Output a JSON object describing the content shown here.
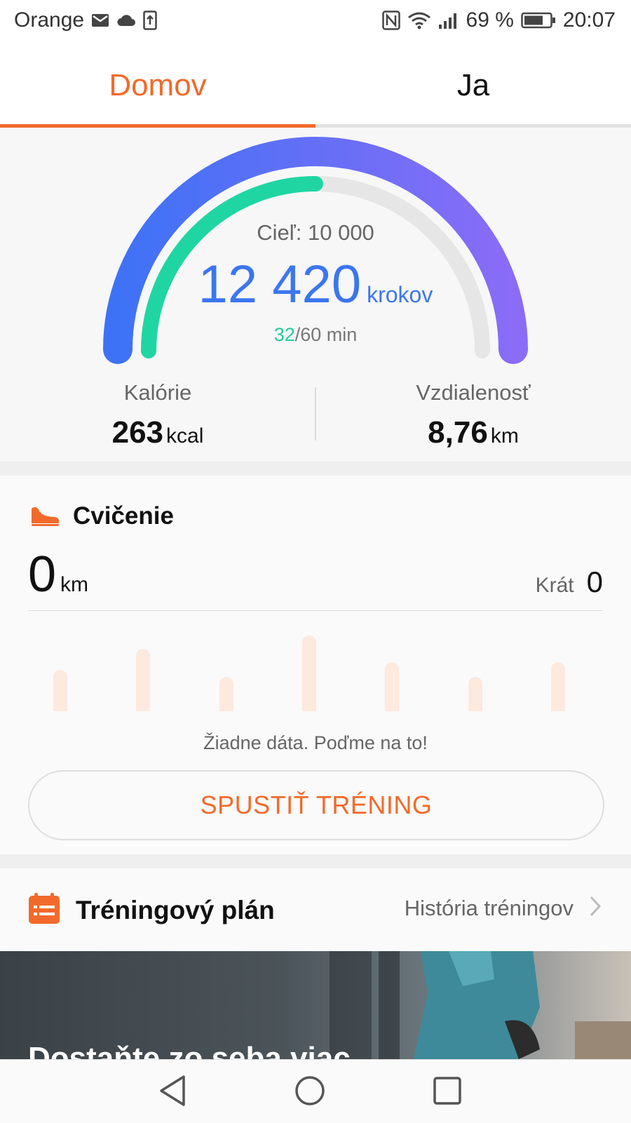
{
  "status_bar": {
    "carrier": "Orange",
    "battery_percent": "69 %",
    "time": "20:07",
    "icons": [
      "gmail-icon",
      "cloud-icon",
      "upload-icon",
      "nfc-icon",
      "wifi-icon",
      "signal-icon",
      "battery-icon"
    ]
  },
  "tabs": [
    {
      "label": "Domov",
      "active": true
    },
    {
      "label": "Ja",
      "active": false
    }
  ],
  "steps": {
    "goal_label": "Cieľ: 10 000",
    "value": "12 420",
    "unit": "krokov",
    "minutes_done": "32",
    "minutes_total": "/60 min",
    "progress_fraction": 0.5,
    "colors": {
      "outer_start": "#3e72f6",
      "outer_end": "#8a6cf7",
      "inner": "#1fd6a3",
      "track": "#e6e6e6"
    }
  },
  "calories": {
    "label": "Kalórie",
    "value": "263",
    "unit": "kcal"
  },
  "distance": {
    "label": "Vzdialenosť",
    "value": "8,76",
    "unit": "km"
  },
  "exercise": {
    "title": "Cvičenie",
    "icon": "shoe-icon",
    "distance_value": "0",
    "distance_unit": "km",
    "times_label": "Krát",
    "times_value": "0",
    "placeholder_levels": [
      0.55,
      0.82,
      0.45,
      1.0,
      0.65,
      0.45,
      0.65
    ],
    "no_data": "Žiadne dáta. Poďme na to!",
    "start_button": "SPUSTIŤ TRÉNING"
  },
  "training_plan": {
    "title": "Tréningový plán",
    "history_link": "História tréningov"
  },
  "banner": {
    "title": "Dostaňte zo seba viac"
  },
  "accent_color": "#f26a2b"
}
